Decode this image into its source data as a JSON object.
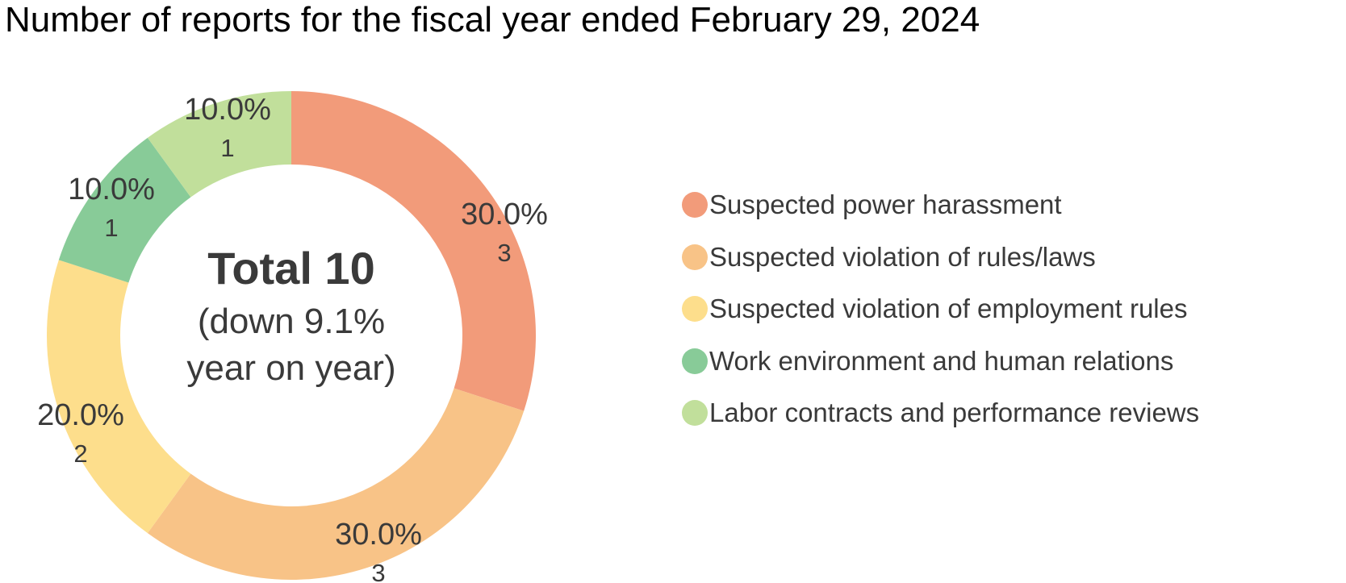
{
  "chart_data": {
    "type": "pie",
    "title": "Number of reports for the fiscal year ended February 29, 2024",
    "center": {
      "total": "Total 10",
      "sub_line1": "(down 9.1%",
      "sub_line2": "year on year)"
    },
    "legend_position": "right",
    "slices": [
      {
        "name": "Suspected power harassment",
        "value": 3,
        "percent": "30.0%",
        "count": "3",
        "color": "#F29B7A"
      },
      {
        "name": "Suspected violation of rules/laws",
        "value": 3,
        "percent": "30.0%",
        "count": "3",
        "color": "#F8C387"
      },
      {
        "name": "Suspected violation of employment rules",
        "value": 2,
        "percent": "20.0%",
        "count": "2",
        "color": "#FDDE8C"
      },
      {
        "name": "Work environment and human relations",
        "value": 1,
        "percent": "10.0%",
        "count": "1",
        "color": "#88CB98"
      },
      {
        "name": "Labor contracts and performance reviews",
        "value": 1,
        "percent": "10.0%",
        "count": "1",
        "color": "#C1DF9B"
      }
    ]
  }
}
